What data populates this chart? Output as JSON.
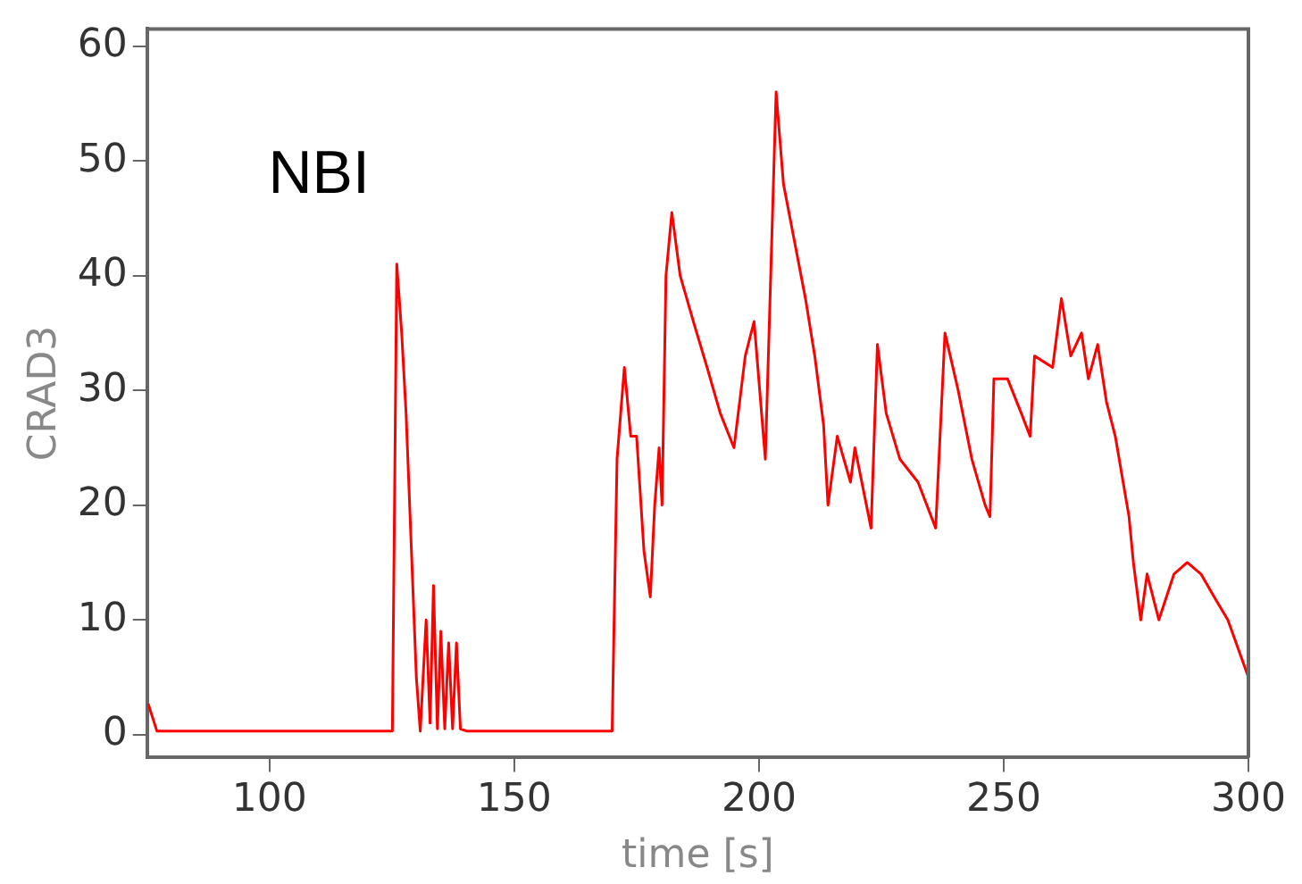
{
  "chart_data": {
    "type": "line",
    "xlabel": "time [s]",
    "ylabel": "CRAD3",
    "annotations": [
      "NBI"
    ],
    "xlim": [
      75,
      300
    ],
    "xticks": [
      100,
      150,
      200,
      250,
      300
    ],
    "ylim": [
      -2,
      61.5
    ],
    "yticks": [
      0,
      10,
      20,
      30,
      40,
      50,
      60
    ],
    "grid": false,
    "legend": false,
    "marker": "none",
    "line_style": "solid",
    "series": [
      {
        "color": "#ff0000",
        "x": [
          75.2,
          77,
          125.1,
          126,
          127,
          127.9,
          130,
          130.8,
          132,
          132.8,
          133.5,
          134.3,
          135,
          135.8,
          136.6,
          137.4,
          138.2,
          139,
          140.4,
          170,
          171,
          172.5,
          173.8,
          175,
          176.5,
          177.8,
          178.7,
          179.6,
          180.2,
          181,
          182.2,
          183.9,
          186.6,
          189.4,
          192.1,
          194.9,
          197.2,
          199,
          201.3,
          203.5,
          205,
          206.8,
          209.5,
          211.4,
          213.2,
          214.1,
          216,
          218.7,
          219.6,
          222.9,
          224.2,
          226,
          228.8,
          232.5,
          236.1,
          238,
          240.7,
          243.5,
          246.2,
          247.2,
          248,
          250.8,
          253.6,
          255.4,
          256.3,
          260,
          261.8,
          263.7,
          265.9,
          267.3,
          269.2,
          271,
          272.8,
          275.6,
          276.5,
          278,
          279.3,
          281.7,
          284.8,
          287.5,
          290.3,
          293,
          295.8,
          300
        ],
        "values": [
          2.7,
          0.3,
          0.3,
          41,
          35,
          28,
          5,
          0.3,
          10,
          1,
          13,
          0.5,
          9,
          0.5,
          8,
          0.5,
          8,
          0.5,
          0.3,
          0.3,
          24,
          32,
          26,
          26,
          16,
          12,
          20,
          25,
          20,
          40,
          45.5,
          40,
          36,
          32,
          28,
          25,
          33,
          36,
          24,
          56,
          48,
          44,
          38,
          33,
          27,
          20,
          26,
          22,
          25,
          18,
          34,
          28,
          24,
          22,
          18,
          35,
          30,
          24,
          20,
          19,
          31,
          31,
          28,
          26,
          33,
          32,
          38,
          33,
          35,
          31,
          34,
          29,
          26,
          19,
          15,
          10,
          14,
          10,
          14,
          15,
          14,
          12,
          10,
          5
        ]
      }
    ]
  }
}
